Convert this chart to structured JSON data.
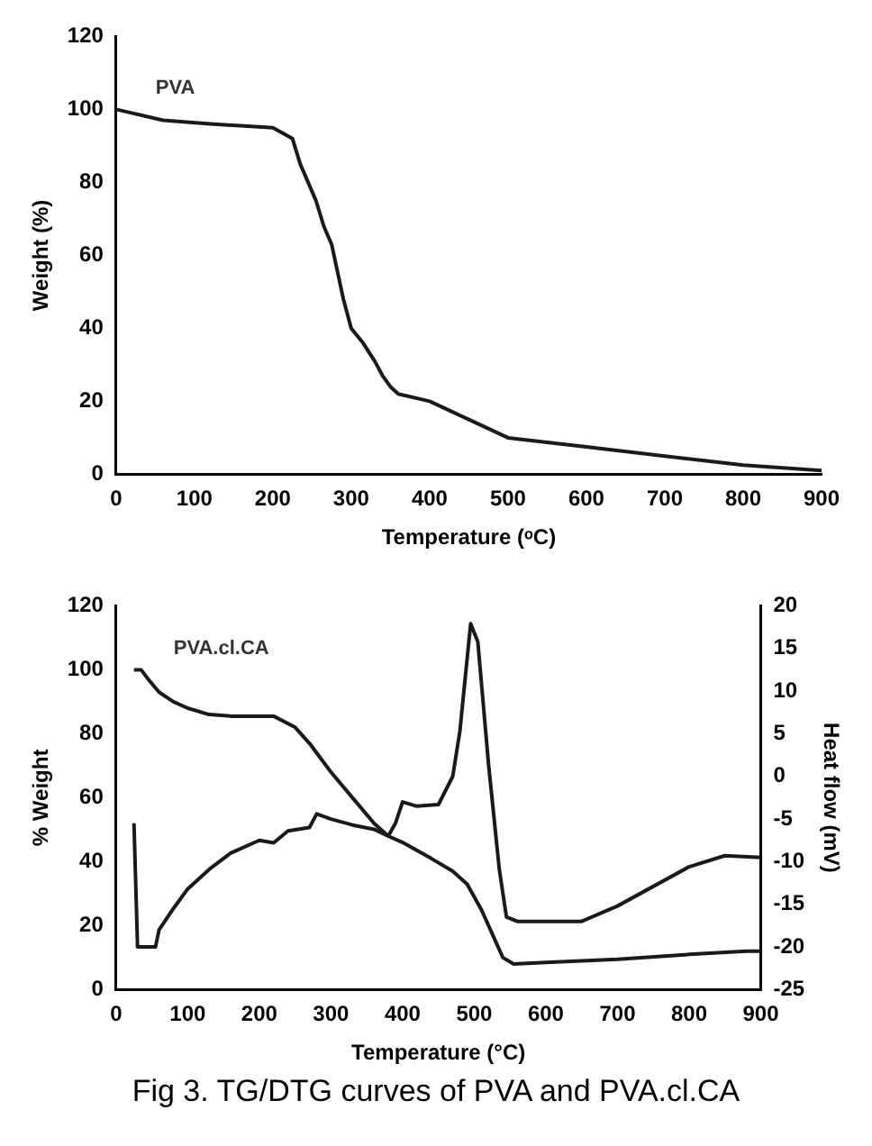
{
  "chart_data": [
    {
      "type": "line",
      "xlabel": "Temperature (ᵒC)",
      "ylabel": "Weight (%)",
      "xlim": [
        0,
        900
      ],
      "xticks": [
        0,
        100,
        200,
        300,
        400,
        500,
        600,
        700,
        800,
        900
      ],
      "ylim": [
        0,
        120
      ],
      "yticks": [
        0,
        20,
        40,
        60,
        80,
        100,
        120
      ],
      "grid": false,
      "legend": false,
      "marker": "none",
      "line_style": "solid",
      "series": [
        {
          "name": "PVA",
          "color": "#1a1a1a",
          "x": [
            0,
            60,
            120,
            200,
            225,
            235,
            255,
            265,
            275,
            290,
            300,
            315,
            330,
            340,
            350,
            360,
            400,
            450,
            500,
            600,
            700,
            800,
            900
          ],
          "values": [
            100,
            97,
            96,
            95,
            92,
            85,
            75,
            68,
            63,
            48,
            40,
            36,
            31,
            27,
            24,
            22,
            20,
            15,
            10,
            7.5,
            5,
            2.5,
            1
          ]
        }
      ]
    },
    {
      "type": "line",
      "xlabel": "Temperature (°C)",
      "ylabel": "% Weight",
      "y2label": "Heat flow (mV)",
      "xlim": [
        0,
        900
      ],
      "xticks": [
        0,
        100,
        200,
        300,
        400,
        500,
        600,
        700,
        800,
        900
      ],
      "ylim": [
        0,
        120
      ],
      "yticks": [
        0,
        20,
        40,
        60,
        80,
        100,
        120
      ],
      "y2lim": [
        -25,
        20
      ],
      "y2ticks": [
        -25,
        -20,
        -15,
        -10,
        -5,
        0,
        5,
        10,
        15,
        20
      ],
      "grid": false,
      "legend": false,
      "marker": "none",
      "line_style": "solid",
      "annotations": [
        "Fig 3. TG/DTG curves of PVA and PVA.cl.CA"
      ],
      "series": [
        {
          "name": "PVA.cl.CA",
          "color": "#1a1a1a",
          "x": [
            25,
            35,
            45,
            60,
            80,
            100,
            130,
            160,
            220,
            250,
            270,
            300,
            330,
            360,
            380,
            400,
            440,
            470,
            490,
            510,
            530,
            540,
            555,
            600,
            700,
            800,
            880,
            900
          ],
          "values": [
            100,
            100,
            97,
            93,
            90,
            88,
            86,
            85.5,
            85.5,
            82,
            77,
            68,
            60,
            52,
            48,
            46,
            41,
            37,
            33,
            25,
            15,
            10,
            8,
            8.5,
            9.5,
            11,
            12,
            12
          ]
        },
        {
          "color": "#1a1a1a",
          "axis": "y2",
          "x": [
            25,
            30,
            40,
            55,
            60,
            80,
            100,
            130,
            160,
            200,
            220,
            240,
            270,
            280,
            300,
            330,
            360,
            380,
            390,
            400,
            420,
            450,
            470,
            480,
            495,
            505,
            520,
            535,
            545,
            560,
            650,
            700,
            800,
            850,
            900
          ],
          "values": [
            -5.5,
            -20,
            -20,
            -20,
            -18,
            -15.5,
            -13.2,
            -10.9,
            -9,
            -7.5,
            -7.8,
            -6.4,
            -6,
            -4.4,
            -5,
            -5.7,
            -6.2,
            -7,
            -5.5,
            -3,
            -3.5,
            -3.3,
            0,
            5.3,
            17.9,
            15.8,
            1.4,
            -10.9,
            -16.5,
            -17,
            -17,
            -15.2,
            -10.6,
            -9.3,
            -9.5
          ]
        }
      ]
    }
  ]
}
